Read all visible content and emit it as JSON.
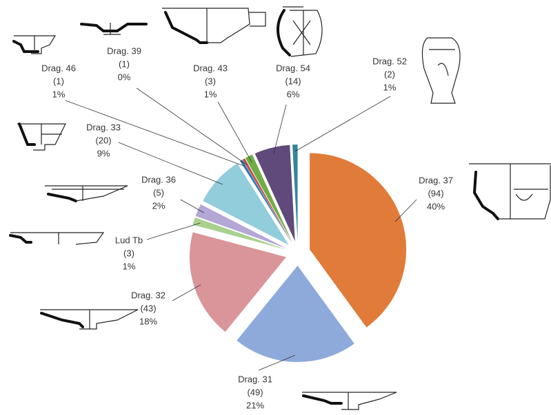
{
  "chart_data": {
    "type": "pie",
    "categories": [
      "Drag. 37",
      "Drag. 31",
      "Drag. 32",
      "Lud Tb",
      "Drag. 36",
      "Drag. 33",
      "Drag. 46",
      "Drag. 39",
      "Drag. 43",
      "Drag. 54",
      "Drag. 52"
    ],
    "values": [
      94,
      49,
      43,
      3,
      5,
      20,
      1,
      1,
      3,
      14,
      2
    ],
    "value_labels": [
      "(94)",
      "(49)",
      "(43)",
      "(3)",
      "(5)",
      "(20)",
      "(1)",
      "(1)",
      "(3)",
      "(14)",
      "(2)"
    ],
    "percentages": [
      40,
      21,
      18,
      1,
      2,
      9,
      1,
      0,
      1,
      6,
      1
    ],
    "percentage_labels": [
      "40%",
      "21%",
      "18%",
      "1%",
      "2%",
      "9%",
      "1%",
      "0%",
      "1%",
      "6%",
      "1%"
    ],
    "colors": [
      "#e07b39",
      "#8eaadb",
      "#d99599",
      "#a9d18e",
      "#b4a7d6",
      "#92cddc",
      "#2e75b6",
      "#c0504d",
      "#70ad47",
      "#604a7b",
      "#31859c"
    ]
  }
}
